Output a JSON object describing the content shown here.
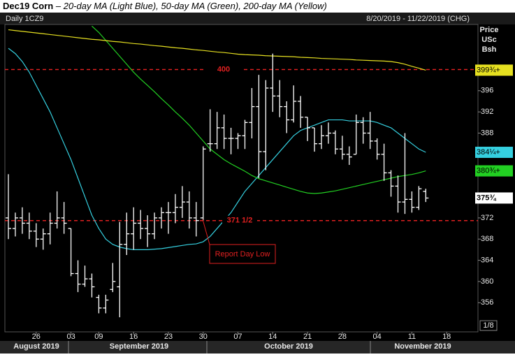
{
  "chart_data": {
    "type": "ohlc",
    "title": "Dec19 Corn",
    "subtitle": "– 20-day MA (Light Blue), 50-day MA (Green), 200-day MA (Yellow)",
    "symbol": "Daily 1CZ9",
    "range_label": "8/20/2019 - 11/22/2019 (CHG)",
    "y_axis_label": [
      "Price",
      "USc",
      "Bsh"
    ],
    "scale_label": "1/8",
    "categories": [
      null,
      null,
      null,
      null,
      "26",
      null,
      null,
      null,
      null,
      "03",
      null,
      null,
      null,
      "09",
      null,
      null,
      null,
      null,
      "16",
      null,
      null,
      null,
      null,
      "23",
      null,
      null,
      null,
      null,
      "30",
      null,
      null,
      null,
      null,
      "07",
      null,
      null,
      null,
      null,
      "14",
      null,
      null,
      null,
      null,
      "21",
      null,
      null,
      null,
      null,
      "28",
      null,
      null,
      null,
      null,
      "04",
      null,
      null,
      null,
      null,
      "11",
      null,
      null,
      null,
      null,
      "18",
      null,
      null,
      null,
      null
    ],
    "months": [
      "August 2019",
      "September 2019",
      "October 2019",
      "November 2019"
    ],
    "ylim": [
      350.5,
      408.5
    ],
    "yticks": [
      356,
      360,
      364,
      368,
      372,
      388,
      392,
      396
    ],
    "bar_color": "#ffffff",
    "open": [
      372,
      370,
      372,
      371,
      369.5,
      368,
      369,
      371,
      372,
      370,
      361.5,
      359.5,
      360.5,
      357,
      355,
      358.5,
      359,
      367,
      369,
      371,
      370,
      369,
      372,
      373,
      373,
      374,
      375,
      372,
      372,
      386,
      386,
      389,
      387,
      387,
      387.5,
      390,
      393,
      384.5,
      396.5,
      395,
      393,
      390.5,
      394,
      391,
      389,
      386,
      387.5,
      388,
      385,
      384,
      384,
      390,
      388,
      386.5,
      384,
      380.5,
      378,
      375,
      375.5,
      374,
      377,
      null,
      null,
      null,
      null,
      null,
      null,
      null
    ],
    "high": [
      380.25,
      373,
      374,
      373,
      371,
      370,
      373,
      377,
      375,
      370,
      364,
      363,
      361.5,
      357.5,
      357.5,
      363.5,
      371.25,
      373,
      374,
      373.5,
      372.5,
      373,
      374,
      375,
      376.5,
      378,
      377,
      375,
      385.5,
      392.5,
      392,
      391.5,
      389,
      388,
      390.5,
      396.5,
      399,
      398,
      403,
      398,
      394,
      397,
      395,
      391,
      389,
      389.5,
      390,
      388.5,
      387.5,
      385.5,
      391.5,
      391,
      392,
      387,
      386,
      381,
      380,
      388,
      377,
      378,
      377.5,
      null,
      null,
      null,
      null,
      null,
      null,
      null
    ],
    "low": [
      368,
      368.5,
      369,
      368,
      366.5,
      366,
      367,
      370,
      369,
      361,
      358,
      359,
      357,
      354,
      354,
      358,
      353.25,
      365,
      366,
      368,
      366.5,
      368,
      370,
      369,
      371,
      372,
      370,
      368.5,
      371.5,
      384.5,
      385,
      385,
      384,
      385,
      385,
      387,
      379.5,
      381,
      392,
      391,
      388,
      390,
      389,
      386.5,
      384.5,
      385,
      386,
      384,
      383,
      382,
      384,
      386,
      385,
      383,
      379,
      376,
      373,
      372.75,
      373,
      373.5,
      375,
      null,
      null,
      null,
      null,
      null,
      null,
      null
    ],
    "close": [
      370,
      372,
      371,
      369.5,
      368,
      369,
      371,
      372,
      371,
      361.5,
      359.5,
      360.5,
      359,
      355,
      356.5,
      360,
      367,
      369,
      371,
      370,
      369,
      372,
      373,
      373,
      374,
      375,
      372,
      371.5,
      385,
      386,
      389,
      387,
      387,
      387.5,
      390,
      393,
      384.5,
      396.5,
      395,
      393,
      390.5,
      394,
      391,
      389,
      386,
      387.5,
      388,
      385,
      384,
      383.5,
      390,
      388,
      386.5,
      384,
      380.5,
      378,
      375,
      375.5,
      374,
      377.5,
      375.75,
      null,
      null,
      null,
      null,
      null,
      null,
      null
    ],
    "close_label": "375¾",
    "series": [
      {
        "color": "#35d0e0",
        "last_label": "384¼+",
        "values": [
          404,
          403,
          401.5,
          399.5,
          397,
          394.5,
          392,
          389,
          386,
          383,
          379.5,
          376,
          372.5,
          370,
          368,
          367,
          366.5,
          366.2,
          366,
          366,
          366,
          366.1,
          366.2,
          366.4,
          366.6,
          366.8,
          367,
          367.1,
          367.5,
          368.5,
          370,
          371.5,
          373,
          375,
          377,
          378.5,
          380,
          381.5,
          383,
          384.5,
          386,
          387.5,
          388.5,
          389,
          389.5,
          390,
          390.5,
          390.5,
          390.5,
          390.3,
          390.3,
          390.3,
          390.3,
          390,
          389.5,
          389,
          388,
          387,
          386,
          385,
          384.375,
          null,
          null,
          null,
          null,
          null,
          null,
          null
        ]
      },
      {
        "color": "#22d022",
        "last_label": "380¾+",
        "values": [
          null,
          null,
          null,
          null,
          null,
          null,
          null,
          null,
          null,
          null,
          null,
          null,
          408.2,
          407,
          405.5,
          404,
          402.5,
          401,
          399.5,
          398.2,
          397,
          395.8,
          394.5,
          393.3,
          392,
          390.8,
          389.5,
          388,
          386.5,
          385,
          384,
          383,
          382.2,
          381.5,
          380.8,
          380,
          379.4,
          379,
          378.6,
          378.2,
          377.8,
          377.4,
          377,
          376.7,
          376.6,
          376.7,
          376.9,
          377.1,
          377.4,
          377.7,
          378,
          378.3,
          378.6,
          378.9,
          379.2,
          379.5,
          379.8,
          380,
          380.2,
          380.5,
          380.875,
          null,
          null,
          null,
          null,
          null,
          null,
          null
        ]
      },
      {
        "color": "#e6e020",
        "last_label": "399¾+",
        "values": [
          407.5,
          407.35,
          407.2,
          407.05,
          406.9,
          406.75,
          406.6,
          406.45,
          406.3,
          406.15,
          406,
          405.85,
          405.7,
          405.6,
          405.45,
          405.3,
          405.2,
          405.05,
          404.9,
          404.8,
          404.65,
          404.5,
          404.4,
          404.25,
          404.1,
          404,
          403.85,
          403.7,
          403.6,
          403.45,
          403.3,
          403.2,
          403.05,
          402.9,
          402.8,
          402.75,
          402.7,
          402.6,
          402.55,
          402.5,
          402.45,
          402.4,
          402.3,
          402.25,
          402.2,
          402.1,
          402.05,
          402,
          401.95,
          401.9,
          401.8,
          401.75,
          401.7,
          401.65,
          401.6,
          401.5,
          401.3,
          401,
          400.6,
          400.25,
          399.875,
          null,
          null,
          null,
          null,
          null,
          null,
          null
        ]
      }
    ],
    "reference_lines": [
      {
        "value": 400,
        "label": "400",
        "color": "#e02020"
      },
      {
        "value": 371.5,
        "label": "371 1/2",
        "color": "#e02020"
      }
    ],
    "annotation": "Report Day Low"
  }
}
